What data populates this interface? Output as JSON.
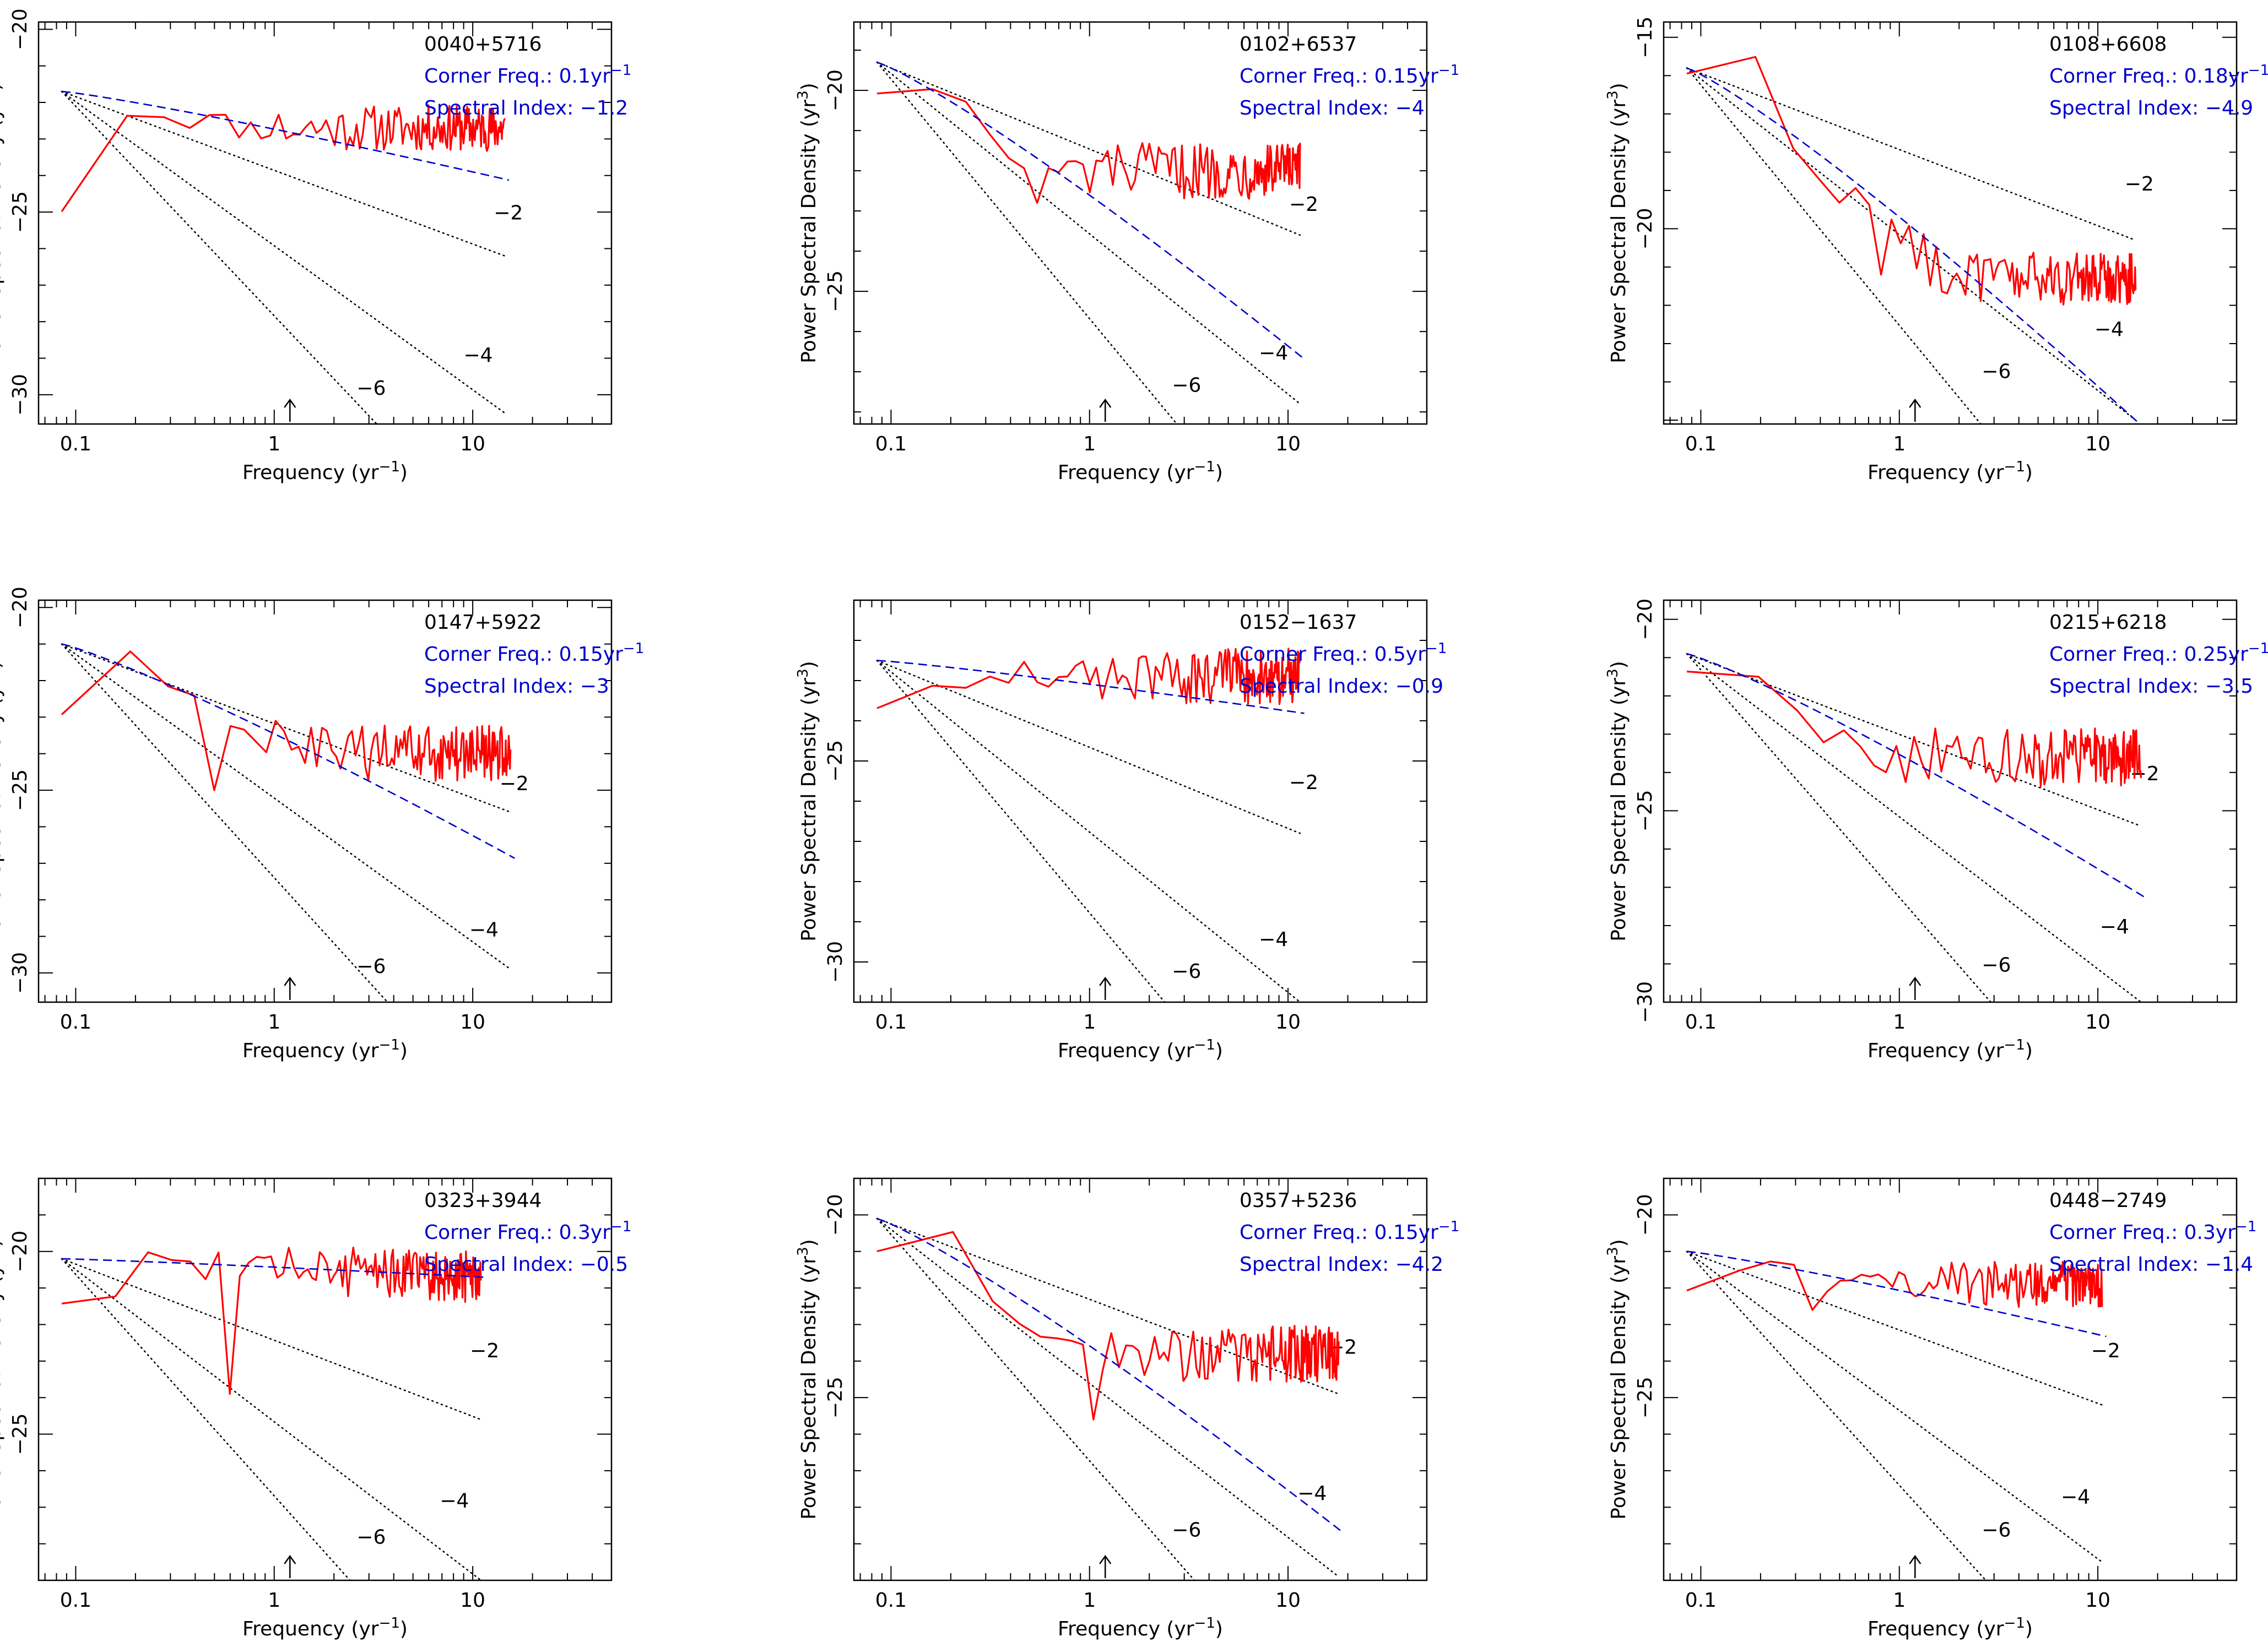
{
  "figure": {
    "xlabel": "Frequency (yr",
    "xlabel_sup": "−1",
    "xlabel_close": ")",
    "ylabel": "Power Spectral Density (yr",
    "ylabel_sup": "3",
    "ylabel_close": ")",
    "corner_prefix": "Corner Freq.: ",
    "corner_unit": "yr",
    "corner_unit_sup": "−1",
    "index_prefix": "Spectral Index: ",
    "x_ticks": [
      0.1,
      1,
      10
    ],
    "x_tick_labels": [
      "0.1",
      "1",
      "10"
    ],
    "arrow_frequency": 1.2,
    "ref_slope_labels": [
      "−2",
      "−4",
      "−6"
    ],
    "colors": {
      "data": "#ff0000",
      "model": "#0000cc",
      "ref": "#000000",
      "text": "#000000",
      "annotation": "#0000cc"
    }
  },
  "chart_data": [
    {
      "type": "line",
      "source": "0040+5716",
      "corner_freq": "0.1",
      "spectral_index": "−1.2",
      "ylim": [
        -30.8,
        -19.8
      ],
      "yticks": [
        -20,
        -25,
        -30
      ],
      "ytick_labels": [
        "−20",
        "−25",
        "−30"
      ],
      "fmax": 14.5,
      "anchor_y": -21.7,
      "model_end": -24.1,
      "data_start": -24.8,
      "data_level": -22.7,
      "noise": 0.45,
      "dip": null,
      "ref_ends": [
        -26.2,
        -30.5,
        -34.5
      ],
      "ref_label_y": [
        -25.2,
        -29.1,
        -30.0
      ]
    },
    {
      "type": "line",
      "source": "0102+6537",
      "corner_freq": "0.15",
      "spectral_index": "−4",
      "ylim": [
        -28.3,
        -18.3
      ],
      "yticks": [
        -20,
        -25
      ],
      "ytick_labels": [
        "−20",
        "−25"
      ],
      "fmax": 11.5,
      "anchor_y": -19.3,
      "model_end": -26.6,
      "data_start": -19.9,
      "data_level": -22.0,
      "noise": 0.5,
      "dip": [
        0.55,
        -22.8
      ],
      "ref_ends": [
        -23.6,
        -27.8,
        -32.0
      ],
      "ref_label_y": [
        -23.0,
        -26.7,
        -27.5
      ]
    },
    {
      "type": "line",
      "source": "0108+6608",
      "corner_freq": "0.18",
      "spectral_index": "−4.9",
      "ylim": [
        -25.1,
        -14.6
      ],
      "yticks": [
        -15,
        -20
      ],
      "ytick_labels": [
        "−15",
        "−20"
      ],
      "fmax": 15.5,
      "anchor_y": -15.8,
      "model_end": -25.0,
      "data_start": -15.8,
      "data_level": -21.3,
      "noise": 0.5,
      "dip": [
        0.8,
        -21.2
      ],
      "ref_ends": [
        -20.3,
        -25.0,
        -30.0
      ],
      "ref_label_y": [
        -19.0,
        -22.8,
        -23.9
      ]
    },
    {
      "type": "line",
      "source": "0147+5922",
      "corner_freq": "0.15",
      "spectral_index": "−3",
      "ylim": [
        -30.8,
        -19.8
      ],
      "yticks": [
        -20,
        -25,
        -30
      ],
      "ytick_labels": [
        "−20",
        "−25",
        "−30"
      ],
      "fmax": 15.5,
      "anchor_y": -21.0,
      "model_end": -26.8,
      "data_start": -22.8,
      "data_level": -24.0,
      "noise": 0.55,
      "dip": [
        0.5,
        -25.0
      ],
      "ref_ends": [
        -25.6,
        -29.9,
        -34.5
      ],
      "ref_label_y": [
        -25.0,
        -29.0,
        -30.0
      ]
    },
    {
      "type": "line",
      "source": "0152−1637",
      "corner_freq": "0.5",
      "spectral_index": "−0.9",
      "ylim": [
        -31.0,
        -21.0
      ],
      "yticks": [
        -25,
        -30
      ],
      "ytick_labels": [
        "−25",
        "−30"
      ],
      "fmax": 11.5,
      "anchor_y": -22.5,
      "model_end": -23.8,
      "data_start": -23.6,
      "data_level": -22.9,
      "noise": 0.5,
      "dip": null,
      "ref_ends": [
        -26.8,
        -31.0,
        -35.0
      ],
      "ref_label_y": [
        -25.7,
        -29.6,
        -30.4
      ]
    },
    {
      "type": "line",
      "source": "0215+6218",
      "corner_freq": "0.25",
      "spectral_index": "−3.5",
      "ylim": [
        -30.0,
        -19.5
      ],
      "yticks": [
        -20,
        -25,
        -30
      ],
      "ytick_labels": [
        "−20",
        "−25",
        "−30"
      ],
      "fmax": 16.5,
      "anchor_y": -20.9,
      "model_end": -27.2,
      "data_start": -21.3,
      "data_level": -23.6,
      "noise": 0.55,
      "dip": [
        0.55,
        -22.9
      ],
      "ref_ends": [
        -25.4,
        -30.0,
        -34.5
      ],
      "ref_label_y": [
        -24.2,
        -28.2,
        -29.2
      ]
    },
    {
      "type": "line",
      "source": "0323+3944",
      "corner_freq": "0.3",
      "spectral_index": "−0.5",
      "ylim": [
        -29.0,
        -18.0
      ],
      "yticks": [
        -20,
        -25
      ],
      "ytick_labels": [
        "−20",
        "−25"
      ],
      "fmax": 11.0,
      "anchor_y": -20.2,
      "model_end": -20.7,
      "data_start": -21.4,
      "data_level": -20.8,
      "noise": 0.5,
      "dip": [
        0.6,
        -23.9
      ],
      "ref_ends": [
        -24.6,
        -29.0,
        -33.0
      ],
      "ref_label_y": [
        -22.9,
        -27.0,
        -28.0
      ]
    },
    {
      "type": "line",
      "source": "0357+5236",
      "corner_freq": "0.15",
      "spectral_index": "−4.2",
      "ylim": [
        -30.0,
        -19.0
      ],
      "yticks": [
        -20,
        -25
      ],
      "ytick_labels": [
        "−20",
        "−25"
      ],
      "fmax": 18.0,
      "anchor_y": -20.1,
      "model_end": -28.6,
      "data_start": -21.0,
      "data_level": -23.8,
      "noise": 0.55,
      "dip": [
        1.05,
        -25.6
      ],
      "ref_ends": [
        -24.9,
        -29.9,
        -34.5
      ],
      "ref_label_y": [
        -23.8,
        -27.8,
        -28.8
      ]
    },
    {
      "type": "line",
      "source": "0448−2749",
      "corner_freq": "0.3",
      "spectral_index": "−1.4",
      "ylim": [
        -30.0,
        -19.0
      ],
      "yticks": [
        -20,
        -25
      ],
      "ytick_labels": [
        "−20",
        "−25"
      ],
      "fmax": 10.5,
      "anchor_y": -21.0,
      "model_end": -23.3,
      "data_start": -22.1,
      "data_level": -21.9,
      "noise": 0.45,
      "dip": [
        0.35,
        -22.6
      ],
      "ref_ends": [
        -25.2,
        -29.5,
        -33.5
      ],
      "ref_label_y": [
        -23.9,
        -27.9,
        -28.8
      ]
    }
  ]
}
